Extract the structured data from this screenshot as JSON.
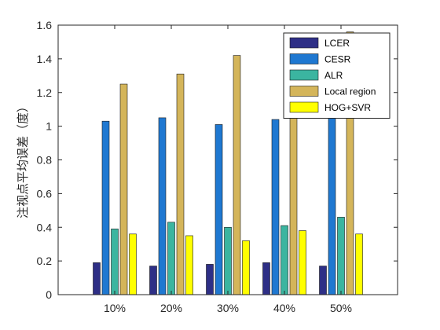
{
  "chart_data": {
    "type": "bar",
    "title": "",
    "xlabel": "",
    "ylabel": "注视点平均误差（度）",
    "categories": [
      "10%",
      "20%",
      "30%",
      "40%",
      "50%"
    ],
    "ylim": [
      0,
      1.6
    ],
    "yticks": [
      "0",
      "0.2",
      "0.4",
      "0.6",
      "0.8",
      "1",
      "1.2",
      "1.4",
      "1.6"
    ],
    "grid": false,
    "legend_position": "top-right",
    "series": [
      {
        "name": "LCER",
        "color": "#2e2f86",
        "values": [
          0.19,
          0.17,
          0.18,
          0.19,
          0.17
        ]
      },
      {
        "name": "CESR",
        "color": "#1f78d1",
        "values": [
          1.03,
          1.05,
          1.01,
          1.04,
          1.07
        ]
      },
      {
        "name": "ALR",
        "color": "#3bb5a0",
        "values": [
          0.39,
          0.43,
          0.4,
          0.41,
          0.46
        ]
      },
      {
        "name": "Local region",
        "color": "#d4b55a",
        "values": [
          1.25,
          1.31,
          1.42,
          1.09,
          1.56
        ]
      },
      {
        "name": "HOG+SVR",
        "color": "#ffff00",
        "values": [
          0.36,
          0.35,
          0.32,
          0.38,
          0.36
        ]
      }
    ]
  }
}
